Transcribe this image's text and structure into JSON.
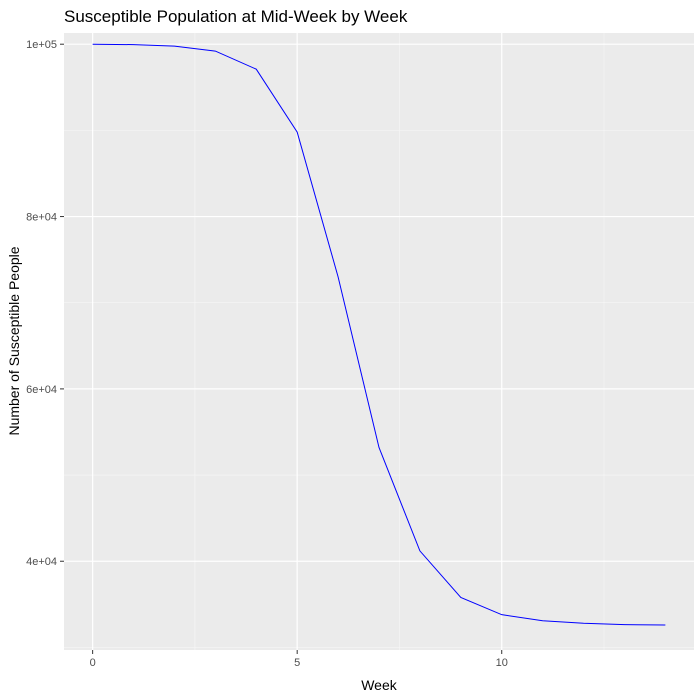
{
  "chart_data": {
    "type": "line",
    "title": "Susceptible Population at Mid-Week by Week",
    "xlabel": "Week",
    "ylabel": "Number of Susceptible People",
    "xlim": [
      -0.7,
      14.7
    ],
    "ylim": [
      29700,
      101300
    ],
    "x_ticks": [
      0,
      5,
      10
    ],
    "x_tick_labels": [
      "0",
      "5",
      "10"
    ],
    "y_ticks": [
      40000,
      60000,
      80000,
      100000
    ],
    "y_tick_labels": [
      "4e+04",
      "6e+04",
      "8e+04",
      "1e+05"
    ],
    "grid": true,
    "line_color": "#0000ff",
    "panel_color": "#ebebeb",
    "series": [
      {
        "name": "Susceptible",
        "x": [
          0,
          1,
          2,
          3,
          4,
          5,
          6,
          7,
          8,
          9,
          10,
          11,
          12,
          13,
          14
        ],
        "values": [
          100000,
          99950,
          99780,
          99200,
          97100,
          89800,
          73000,
          53200,
          41200,
          35800,
          33800,
          33100,
          32800,
          32650,
          32600
        ]
      }
    ]
  }
}
